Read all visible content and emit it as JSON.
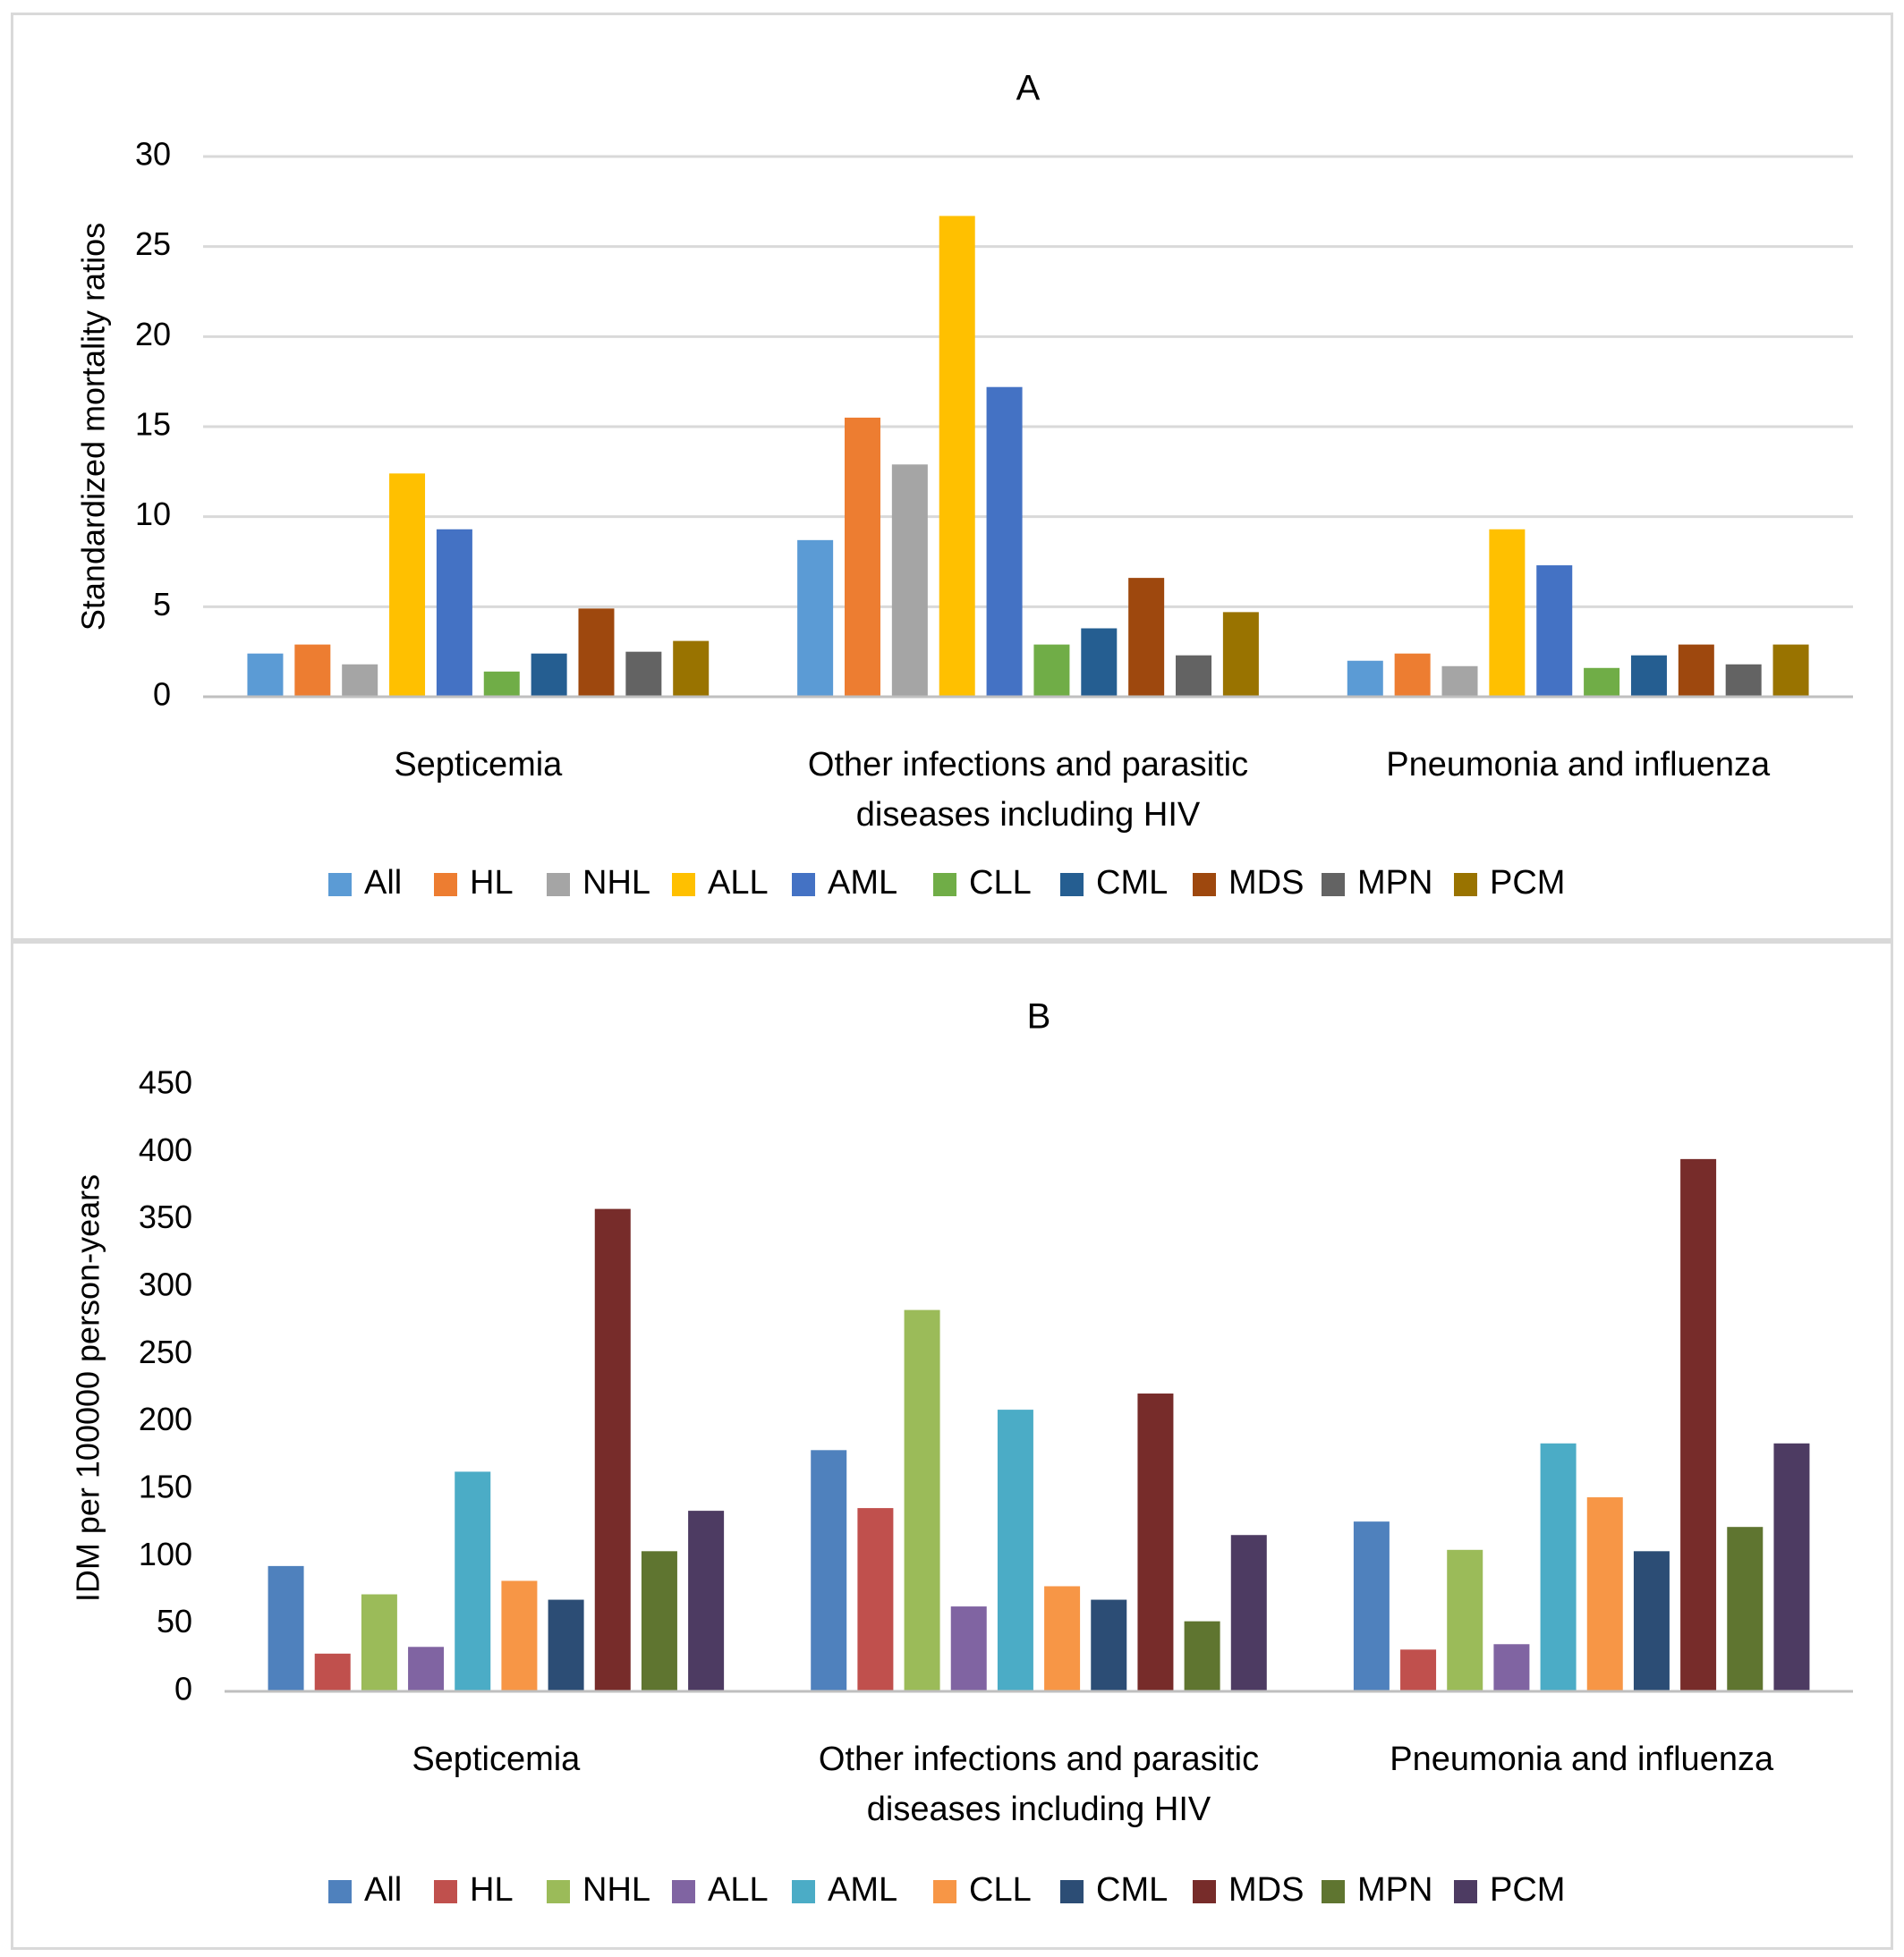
{
  "chart_data": [
    {
      "panel": "A",
      "type": "bar",
      "title": "A",
      "xlabel": "",
      "ylabel": "Standardized mortality ratios",
      "ylim": [
        0,
        30
      ],
      "yticks": [
        0,
        5,
        10,
        15,
        20,
        25,
        30
      ],
      "grid": true,
      "legend_position": "bottom",
      "categories": [
        [
          "Septicemia"
        ],
        [
          "Other infections and parasitic",
          "diseases including HIV"
        ],
        [
          "Pneumonia and influenza"
        ]
      ],
      "series": [
        {
          "name": "All",
          "color": "#5B9BD5",
          "values": [
            2.4,
            8.7,
            2.0
          ]
        },
        {
          "name": "HL",
          "color": "#ED7D31",
          "values": [
            2.9,
            15.5,
            2.4
          ]
        },
        {
          "name": "NHL",
          "color": "#A5A5A5",
          "values": [
            1.8,
            12.9,
            1.7
          ]
        },
        {
          "name": "ALL",
          "color": "#FFC000",
          "values": [
            12.4,
            26.7,
            9.3
          ]
        },
        {
          "name": "AML",
          "color": "#4472C4",
          "values": [
            9.3,
            17.2,
            7.3
          ]
        },
        {
          "name": "CLL",
          "color": "#70AD47",
          "values": [
            1.4,
            2.9,
            1.6
          ]
        },
        {
          "name": "CML",
          "color": "#255E91",
          "values": [
            2.4,
            3.8,
            2.3
          ]
        },
        {
          "name": "MDS",
          "color": "#9E480E",
          "values": [
            4.9,
            6.6,
            2.9
          ]
        },
        {
          "name": "MPN",
          "color": "#636363",
          "values": [
            2.5,
            2.3,
            1.8
          ]
        },
        {
          "name": "PCM",
          "color": "#997300",
          "values": [
            3.1,
            4.7,
            2.9
          ]
        }
      ]
    },
    {
      "panel": "B",
      "type": "bar",
      "title": "B",
      "xlabel": "",
      "ylabel": "IDM per 100000 person-years",
      "ylim": [
        0,
        450
      ],
      "yticks": [
        0,
        50,
        100,
        150,
        200,
        250,
        300,
        350,
        400,
        450
      ],
      "grid": false,
      "legend_position": "bottom",
      "categories": [
        [
          "Septicemia"
        ],
        [
          "Other infections and parasitic",
          "diseases including HIV"
        ],
        [
          "Pneumonia and influenza"
        ]
      ],
      "series": [
        {
          "name": "All",
          "color": "#4F81BD",
          "values": [
            93,
            179,
            126
          ]
        },
        {
          "name": "HL",
          "color": "#C0504D",
          "values": [
            28,
            136,
            31
          ]
        },
        {
          "name": "NHL",
          "color": "#9BBB59",
          "values": [
            72,
            283,
            105
          ]
        },
        {
          "name": "ALL",
          "color": "#8064A2",
          "values": [
            33,
            63,
            35
          ]
        },
        {
          "name": "AML",
          "color": "#4BACC6",
          "values": [
            163,
            209,
            184
          ]
        },
        {
          "name": "CLL",
          "color": "#F79646",
          "values": [
            82,
            78,
            144
          ]
        },
        {
          "name": "CML",
          "color": "#2C4D75",
          "values": [
            68,
            68,
            104
          ]
        },
        {
          "name": "MDS",
          "color": "#772C2A",
          "values": [
            358,
            221,
            395
          ]
        },
        {
          "name": "MPN",
          "color": "#5F7530",
          "values": [
            104,
            52,
            122
          ]
        },
        {
          "name": "PCM",
          "color": "#4D3B62",
          "values": [
            134,
            116,
            184
          ]
        }
      ]
    }
  ]
}
